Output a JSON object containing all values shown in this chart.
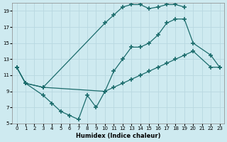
{
  "xlabel": "Humidex (Indice chaleur)",
  "bg_color": "#ceeaf0",
  "line_color": "#1a6b6b",
  "grid_color": "#b8d8e0",
  "xlim": [
    -0.5,
    23.5
  ],
  "ylim": [
    5,
    20
  ],
  "xticks": [
    0,
    1,
    2,
    3,
    4,
    5,
    6,
    7,
    8,
    9,
    10,
    11,
    12,
    13,
    14,
    15,
    16,
    17,
    18,
    19,
    20,
    21,
    22,
    23
  ],
  "yticks": [
    5,
    7,
    9,
    11,
    13,
    15,
    17,
    19
  ],
  "line1_x": [
    0,
    1,
    3,
    10,
    11,
    12,
    13,
    14,
    15,
    16,
    17,
    18,
    19
  ],
  "line1_y": [
    12,
    10,
    9.5,
    17.5,
    18.5,
    19.5,
    19.8,
    19.8,
    19.3,
    19.5,
    19.8,
    19.8,
    19.5
  ],
  "line2_x": [
    0,
    1,
    3,
    4,
    5,
    6,
    7,
    8,
    9,
    10,
    11,
    12,
    13,
    14,
    15,
    16,
    17,
    18,
    19,
    20,
    22,
    23
  ],
  "line2_y": [
    12,
    10,
    8.5,
    7.5,
    6.5,
    6.0,
    5.5,
    8.5,
    7.0,
    9.0,
    11.5,
    13.0,
    14.5,
    14.5,
    15.0,
    16.0,
    17.5,
    18.0,
    18.0,
    15.0,
    13.5,
    12.0
  ],
  "line3_x": [
    0,
    1,
    3,
    10,
    11,
    12,
    13,
    14,
    15,
    16,
    17,
    18,
    19,
    20,
    22,
    23
  ],
  "line3_y": [
    12,
    10,
    9.5,
    9.0,
    9.5,
    10.0,
    10.5,
    11.0,
    11.5,
    12.0,
    12.5,
    13.0,
    13.5,
    14.0,
    12.0,
    12.0
  ],
  "marker": "+",
  "markersize": 4,
  "linewidth": 0.9,
  "tick_fontsize": 5,
  "xlabel_fontsize": 6
}
